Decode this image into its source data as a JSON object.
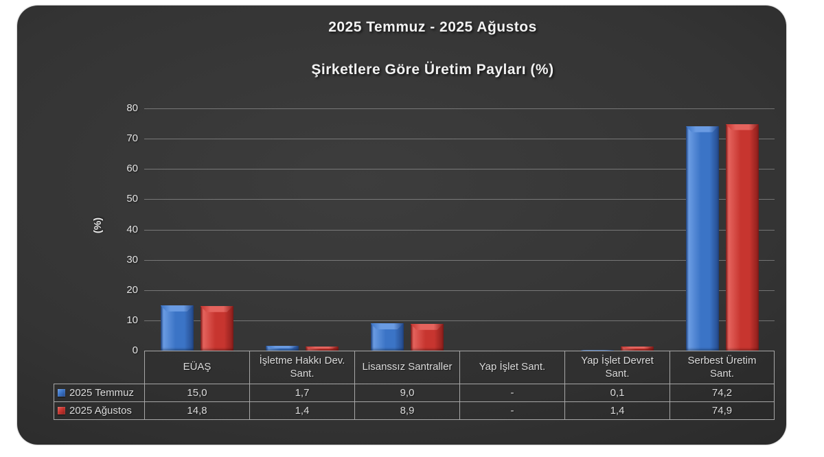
{
  "header": {
    "title": "2025 Temmuz - 2025 Ağustos",
    "subtitle": "Şirketlere Göre Üretim Payları (%)"
  },
  "chart_data": {
    "type": "bar",
    "title": "2025 Temmuz - 2025 Ağustos",
    "subtitle": "Şirketlere Göre Üretim Payları (%)",
    "xlabel": "",
    "ylabel": "(%)",
    "ylim": [
      0,
      80
    ],
    "ytick_step": 10,
    "grid": true,
    "legend_position": "table-rows-left",
    "categories": [
      "EÜAŞ",
      "İşletme Hakkı Dev. Sant.",
      "Lisanssız Santraller",
      "Yap İşlet Sant.",
      "Yap İşlet Devret Sant.",
      "Serbest Üretim Sant."
    ],
    "series": [
      {
        "name": "2025 Temmuz",
        "values": [
          15.0,
          1.7,
          9.0,
          null,
          0.1,
          74.2
        ],
        "labels": [
          "15,0",
          "1,7",
          "9,0",
          "-",
          "0,1",
          "74,2"
        ],
        "color": "#3b74c6",
        "color_light": "#6a9be2",
        "color_dark": "#24498a"
      },
      {
        "name": "2025 Ağustos",
        "values": [
          14.8,
          1.4,
          8.9,
          null,
          1.4,
          74.9
        ],
        "labels": [
          "14,8",
          "1,4",
          "8,9",
          "-",
          "1,4",
          "74,9"
        ],
        "color": "#c7352f",
        "color_light": "#e4635d",
        "color_dark": "#8a1e1b"
      }
    ],
    "colors": {
      "panel_background": "#303030",
      "gridline": "#8c8c8c",
      "text": "#e3e3e3",
      "table_border": "#a8a8a8"
    }
  }
}
